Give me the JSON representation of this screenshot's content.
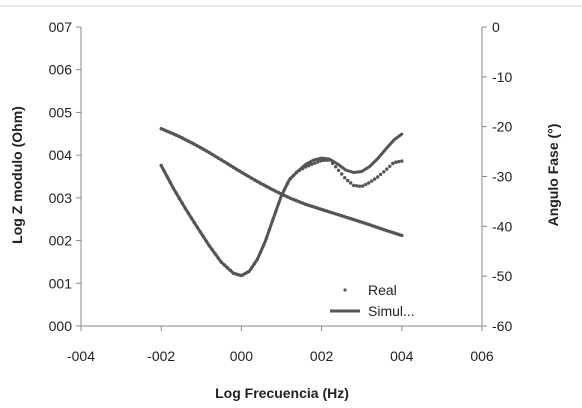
{
  "chart_data": {
    "type": "scatter",
    "title": "",
    "xlabel": "Log Frecuencia (Hz)",
    "ylabel_left": "Log Z modulo (Ohm)",
    "ylabel_right": "Angulo Fase (°)",
    "xlim": [
      -4,
      6
    ],
    "ylim_left": [
      0,
      7
    ],
    "ylim_right": [
      -60,
      0
    ],
    "x_ticks": [
      -4,
      -2,
      0,
      2,
      4,
      6
    ],
    "x_tick_labels": [
      "-004",
      "-002",
      "000",
      "002",
      "004",
      "006"
    ],
    "y_left_ticks": [
      0,
      1,
      2,
      3,
      4,
      5,
      6,
      7
    ],
    "y_left_tick_labels": [
      "000",
      "001",
      "002",
      "003",
      "004",
      "005",
      "006",
      "007"
    ],
    "y_right_ticks": [
      0,
      -10,
      -20,
      -30,
      -40,
      -50,
      -60
    ],
    "y_right_tick_labels": [
      "0",
      "-10",
      "-20",
      "-30",
      "-40",
      "-50",
      "-60"
    ],
    "grid": false,
    "legend_position": "bottom-right",
    "colors": {
      "series": "#555555",
      "axis": "#888888"
    },
    "series": [
      {
        "name": "Real",
        "style": "markers",
        "y_axis": "left",
        "x": [
          -2.0,
          -1.6,
          -1.2,
          -0.8,
          -0.4,
          0.0,
          0.4,
          0.8,
          1.2,
          1.6,
          2.0,
          2.4,
          2.8,
          3.2,
          3.6,
          4.0
        ],
        "y": [
          4.62,
          4.46,
          4.27,
          4.06,
          3.83,
          3.6,
          3.38,
          3.18,
          3.0,
          2.85,
          2.73,
          2.61,
          2.49,
          2.37,
          2.24,
          2.12
        ]
      },
      {
        "name": "Simul...",
        "style": "line",
        "y_axis": "left",
        "x": [
          -2.0,
          -1.6,
          -1.2,
          -0.8,
          -0.4,
          0.0,
          0.4,
          0.8,
          1.2,
          1.6,
          2.0,
          2.4,
          2.8,
          3.2,
          3.6,
          4.0
        ],
        "y": [
          4.62,
          4.46,
          4.27,
          4.06,
          3.83,
          3.6,
          3.38,
          3.18,
          3.0,
          2.85,
          2.73,
          2.61,
          2.49,
          2.37,
          2.24,
          2.12
        ]
      },
      {
        "name": "Real",
        "style": "markers",
        "y_axis": "right",
        "x": [
          -2.0,
          -1.7,
          -1.4,
          -1.1,
          -0.8,
          -0.5,
          -0.2,
          0.0,
          0.2,
          0.4,
          0.6,
          0.8,
          1.0,
          1.2,
          1.4,
          1.6,
          1.8,
          2.0,
          2.2,
          2.4,
          2.6,
          2.8,
          3.0,
          3.2,
          3.4,
          3.6,
          3.8,
          4.0
        ],
        "y": [
          -27.8,
          -32.3,
          -36.4,
          -40.2,
          -43.9,
          -47.2,
          -49.4,
          -49.9,
          -49.0,
          -46.6,
          -42.9,
          -38.3,
          -33.8,
          -30.6,
          -29.0,
          -28.1,
          -27.4,
          -26.8,
          -26.7,
          -28.5,
          -30.5,
          -31.8,
          -32.0,
          -31.2,
          -30.1,
          -28.7,
          -27.2,
          -26.9
        ]
      },
      {
        "name": "Simul...",
        "style": "line",
        "y_axis": "right",
        "x": [
          -2.0,
          -1.7,
          -1.4,
          -1.1,
          -0.8,
          -0.5,
          -0.2,
          0.0,
          0.2,
          0.4,
          0.6,
          0.8,
          1.0,
          1.2,
          1.4,
          1.6,
          1.8,
          2.0,
          2.2,
          2.4,
          2.6,
          2.8,
          3.0,
          3.2,
          3.4,
          3.6,
          3.8,
          4.0
        ],
        "y": [
          -27.8,
          -32.3,
          -36.4,
          -40.2,
          -43.9,
          -47.2,
          -49.4,
          -49.9,
          -49.0,
          -46.6,
          -42.9,
          -38.3,
          -33.8,
          -30.6,
          -29.0,
          -27.6,
          -26.7,
          -26.3,
          -26.5,
          -27.5,
          -28.7,
          -29.2,
          -29.0,
          -28.0,
          -26.4,
          -24.5,
          -22.7,
          -21.5
        ]
      }
    ],
    "legend": [
      {
        "label": "Real",
        "style": "markers"
      },
      {
        "label": "Simul...",
        "style": "line"
      }
    ]
  }
}
